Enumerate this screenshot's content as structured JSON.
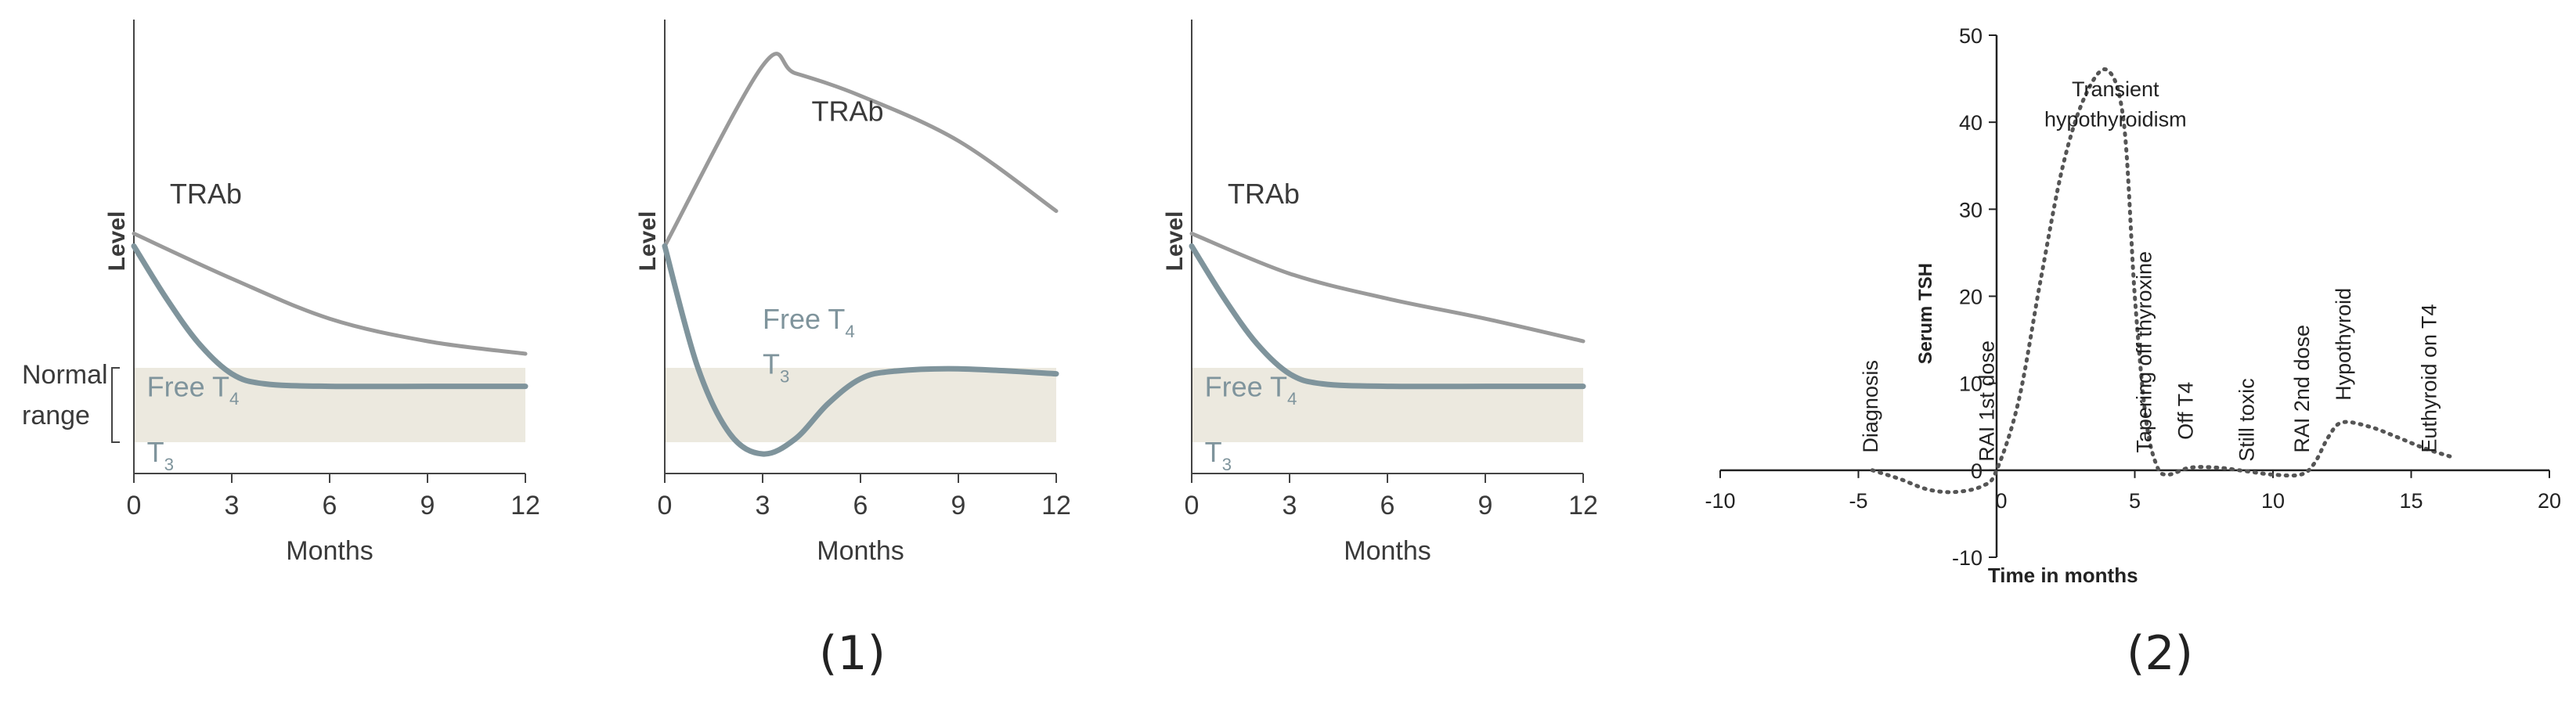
{
  "figure_labels": {
    "part1": "(1)",
    "part2": "(2)"
  },
  "colors": {
    "trab": "#9a9a9a",
    "hormone": "#7f949c",
    "band": "#ece9df",
    "axis": "#444444",
    "text": "#3a3a3a"
  },
  "chart_data": [
    {
      "type": "line",
      "xlabel": "Months",
      "ylabel": "Level",
      "xticks": [
        "0",
        "3",
        "6",
        "9",
        "12"
      ],
      "xlim": [
        0,
        12
      ],
      "band_label_lines": [
        "Normal",
        "range"
      ],
      "series": [
        {
          "name": "TRAb",
          "x": [
            0,
            3,
            6,
            9,
            12
          ],
          "y": [
            0.88,
            0.7,
            0.54,
            0.45,
            0.4
          ]
        },
        {
          "name": "Free T4 / T3",
          "x": [
            0,
            1,
            2,
            3,
            4,
            6,
            9,
            12
          ],
          "y": [
            0.83,
            0.62,
            0.44,
            0.32,
            0.28,
            0.27,
            0.27,
            0.27
          ]
        }
      ],
      "annotations": {
        "trab": "TRAb",
        "ft4": "Free T",
        "ft4_sub": "4",
        "t3": "T",
        "t3_sub": "3"
      }
    },
    {
      "type": "line",
      "xlabel": "Months",
      "ylabel": "Level",
      "xticks": [
        "0",
        "3",
        "6",
        "9",
        "12"
      ],
      "xlim": [
        0,
        12
      ],
      "series": [
        {
          "name": "TRAb",
          "x": [
            0,
            3,
            4,
            6,
            9,
            12
          ],
          "y": [
            0.83,
            1.55,
            1.52,
            1.43,
            1.25,
            0.97
          ]
        },
        {
          "name": "Free T4 / T3",
          "x": [
            0,
            1,
            2,
            3,
            4,
            5,
            6,
            7,
            9,
            12
          ],
          "y": [
            0.83,
            0.35,
            0.08,
            0.0,
            0.06,
            0.2,
            0.3,
            0.33,
            0.34,
            0.32
          ]
        }
      ],
      "annotations": {
        "trab": "TRAb",
        "ft4": "Free T",
        "ft4_sub": "4",
        "t3": "T",
        "t3_sub": "3"
      }
    },
    {
      "type": "line",
      "xlabel": "Months",
      "ylabel": "Level",
      "xticks": [
        "0",
        "3",
        "6",
        "9",
        "12"
      ],
      "xlim": [
        0,
        12
      ],
      "series": [
        {
          "name": "TRAb",
          "x": [
            0,
            3,
            6,
            9,
            12
          ],
          "y": [
            0.88,
            0.72,
            0.62,
            0.54,
            0.45
          ]
        },
        {
          "name": "Free T4 / T3",
          "x": [
            0,
            1,
            2,
            3,
            4,
            6,
            9,
            12
          ],
          "y": [
            0.83,
            0.62,
            0.44,
            0.32,
            0.28,
            0.27,
            0.27,
            0.27
          ]
        }
      ],
      "annotations": {
        "trab": "TRAb",
        "ft4": "Free T",
        "ft4_sub": "4",
        "t3": "T",
        "t3_sub": "3"
      }
    },
    {
      "type": "line",
      "xlabel": "Time in months",
      "ylabel": "Serum TSH",
      "xlim": [
        -10,
        20
      ],
      "ylim": [
        -10,
        50
      ],
      "xticks": [
        -10,
        -5,
        0,
        5,
        10,
        15,
        20
      ],
      "yticks": [
        -10,
        0,
        10,
        20,
        30,
        40,
        50
      ],
      "series": [
        {
          "x": [
            -4.5,
            -3.5,
            -2.5,
            -1.5,
            -0.5,
            0,
            0.8,
            1.6,
            2.4,
            3.2,
            4.0,
            4.6,
            5.0,
            5.4,
            5.8,
            6.2,
            7,
            8,
            9,
            10,
            11,
            11.5,
            12,
            12.5,
            13.5,
            14.5,
            15.5,
            16.5
          ],
          "y": [
            0,
            -1,
            -2.2,
            -2.5,
            -1.8,
            0,
            8,
            22,
            35,
            43,
            46,
            40,
            20,
            6,
            0.5,
            -0.5,
            0.3,
            0.3,
            -0.1,
            -0.5,
            -0.5,
            0.8,
            3.8,
            5.5,
            5,
            3.8,
            2.5,
            1.5
          ]
        }
      ],
      "annotations": [
        {
          "text": "Diagnosis",
          "x": -4.3,
          "y": 2,
          "rotate": true
        },
        {
          "text": "RAI 1st dose",
          "x": -0.1,
          "y": 1,
          "rotate": true
        },
        {
          "text": "Transient",
          "x": 4.3,
          "y": 43,
          "rotate": false
        },
        {
          "text": "hypothyroidism",
          "x": 4.3,
          "y": 39.5,
          "rotate": false
        },
        {
          "text": "Tapering off thyroxine",
          "x": 5.6,
          "y": 2,
          "rotate": true
        },
        {
          "text": "Off T4",
          "x": 7.1,
          "y": 3.5,
          "rotate": true
        },
        {
          "text": "Still toxic",
          "x": 9.3,
          "y": 1,
          "rotate": true
        },
        {
          "text": "RAI 2nd dose",
          "x": 11.3,
          "y": 2,
          "rotate": true
        },
        {
          "text": "Hypothyroid",
          "x": 12.8,
          "y": 8,
          "rotate": true
        },
        {
          "text": "Euthyroid on T4",
          "x": 15.9,
          "y": 2,
          "rotate": true
        }
      ]
    }
  ]
}
